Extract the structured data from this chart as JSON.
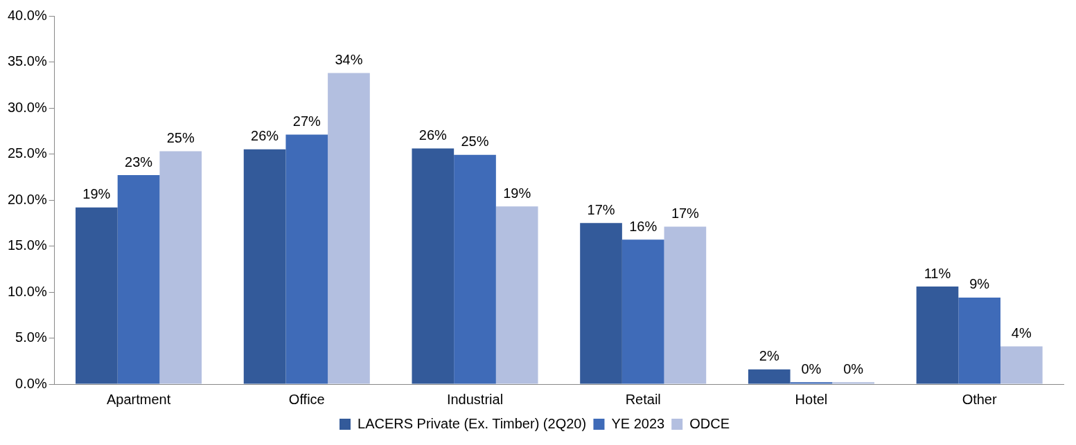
{
  "chart_data": {
    "type": "bar",
    "categories": [
      "Apartment",
      "Office",
      "Industrial",
      "Retail",
      "Hotel",
      "Other"
    ],
    "series": [
      {
        "name": "LACERS Private (Ex. Timber) (2Q20)",
        "color": "#335a9a",
        "values": [
          19.2,
          25.5,
          25.6,
          17.5,
          1.6,
          10.6
        ],
        "value_labels": [
          "19%",
          "26%",
          "26%",
          "17%",
          "2%",
          "11%"
        ]
      },
      {
        "name": "YE 2023",
        "color": "#3f6bb8",
        "values": [
          22.7,
          27.1,
          24.9,
          15.7,
          0.2,
          9.4
        ],
        "value_labels": [
          "23%",
          "27%",
          "25%",
          "16%",
          "0%",
          "9%"
        ]
      },
      {
        "name": "ODCE",
        "color": "#b3bfe0",
        "values": [
          25.3,
          33.8,
          19.3,
          17.1,
          0.2,
          4.1
        ],
        "value_labels": [
          "25%",
          "34%",
          "19%",
          "17%",
          "0%",
          "4%"
        ]
      }
    ],
    "ylim": [
      0,
      40
    ],
    "yticks": [
      {
        "value": 0,
        "label": "0.0%"
      },
      {
        "value": 5,
        "label": "5.0%"
      },
      {
        "value": 10,
        "label": "10.0%"
      },
      {
        "value": 15,
        "label": "15.0%"
      },
      {
        "value": 20,
        "label": "20.0%"
      },
      {
        "value": 25,
        "label": "25.0%"
      },
      {
        "value": 30,
        "label": "30.0%"
      },
      {
        "value": 35,
        "label": "35.0%"
      },
      {
        "value": 40,
        "label": "40.0%"
      }
    ],
    "grid": false,
    "legend": "bottom"
  }
}
